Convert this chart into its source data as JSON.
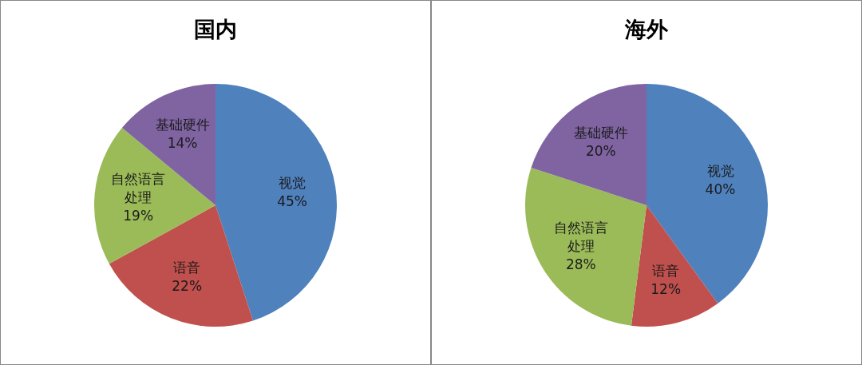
{
  "chart_data": [
    {
      "type": "pie",
      "title": "国内",
      "categories": [
        "视觉",
        "语音",
        "自然语言处理",
        "基础硬件"
      ],
      "values": [
        45,
        22,
        19,
        14
      ],
      "colors": [
        "#4f81bd",
        "#c0504d",
        "#9bbb59",
        "#8064a2"
      ],
      "value_labels": [
        "45%",
        "22%",
        "19%",
        "14%"
      ]
    },
    {
      "type": "pie",
      "title": "海外",
      "categories": [
        "视觉",
        "语音",
        "自然语言处理",
        "基础硬件"
      ],
      "values": [
        40,
        12,
        28,
        20
      ],
      "colors": [
        "#4f81bd",
        "#c0504d",
        "#9bbb59",
        "#8064a2"
      ],
      "value_labels": [
        "40%",
        "12%",
        "28%",
        "20%"
      ]
    }
  ]
}
